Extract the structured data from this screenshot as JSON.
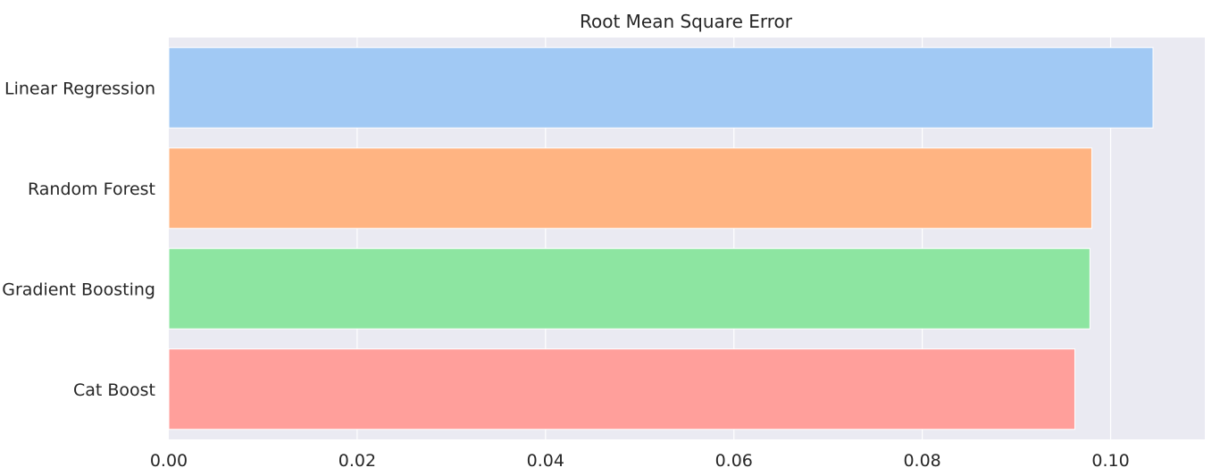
{
  "chart_data": {
    "type": "bar",
    "orientation": "horizontal",
    "title": "Root Mean Square Error",
    "xlabel": "",
    "ylabel": "",
    "categories": [
      "Linear Regression",
      "Random Forest",
      "Gradient Boosting",
      "Cat Boost"
    ],
    "values": [
      0.1045,
      0.098,
      0.0978,
      0.0962
    ],
    "colors": [
      "#a1c9f4",
      "#ffb482",
      "#8de5a1",
      "#ff9f9b"
    ],
    "xlim": [
      0,
      0.11
    ],
    "xticks": [
      "0.00",
      "0.02",
      "0.04",
      "0.06",
      "0.08",
      "0.10"
    ],
    "grid": true,
    "background": "#eaeaf2",
    "legend": "none"
  }
}
